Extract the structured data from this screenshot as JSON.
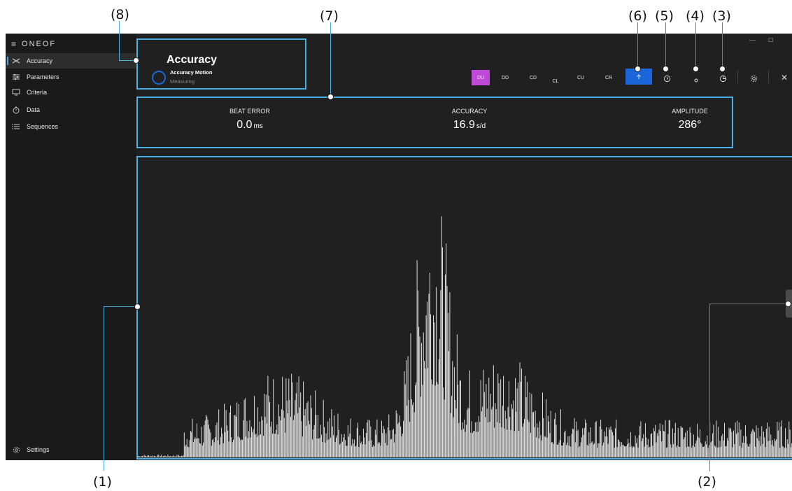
{
  "callouts": [
    "(1)",
    "(2)",
    "(3)",
    "(4)",
    "(5)",
    "(6)",
    "(7)",
    "(8)"
  ],
  "brand": "ONEOF",
  "sidebar": {
    "items": [
      {
        "label": "Accuracy",
        "icon": "accuracy-icon"
      },
      {
        "label": "Parameters",
        "icon": "sliders-icon"
      },
      {
        "label": "Criteria",
        "icon": "monitor-icon"
      },
      {
        "label": "Data",
        "icon": "stopwatch-icon"
      },
      {
        "label": "Sequences",
        "icon": "list-icon"
      }
    ],
    "settings": "Settings"
  },
  "header": {
    "title": "Accuracy",
    "subtitle": "Accuracy Motion",
    "status": "Measuring"
  },
  "positions": [
    "DU",
    "DD",
    "CD",
    "CL",
    "CU",
    "CR"
  ],
  "active_position": "DU",
  "metrics": [
    {
      "label": "BEAT ERROR",
      "value": "0.0",
      "unit": "ms"
    },
    {
      "label": "ACCURACY",
      "value": "16.9",
      "unit": "s/d"
    },
    {
      "label": "AMPLITUDE",
      "value": "286°",
      "unit": ""
    }
  ],
  "colors": {
    "accent": "#4ab0e6",
    "position_active": "#c04ad8",
    "primary_button": "#1a66d8",
    "app_bg": "#202020",
    "sidebar_bg": "#1a1a1a"
  }
}
